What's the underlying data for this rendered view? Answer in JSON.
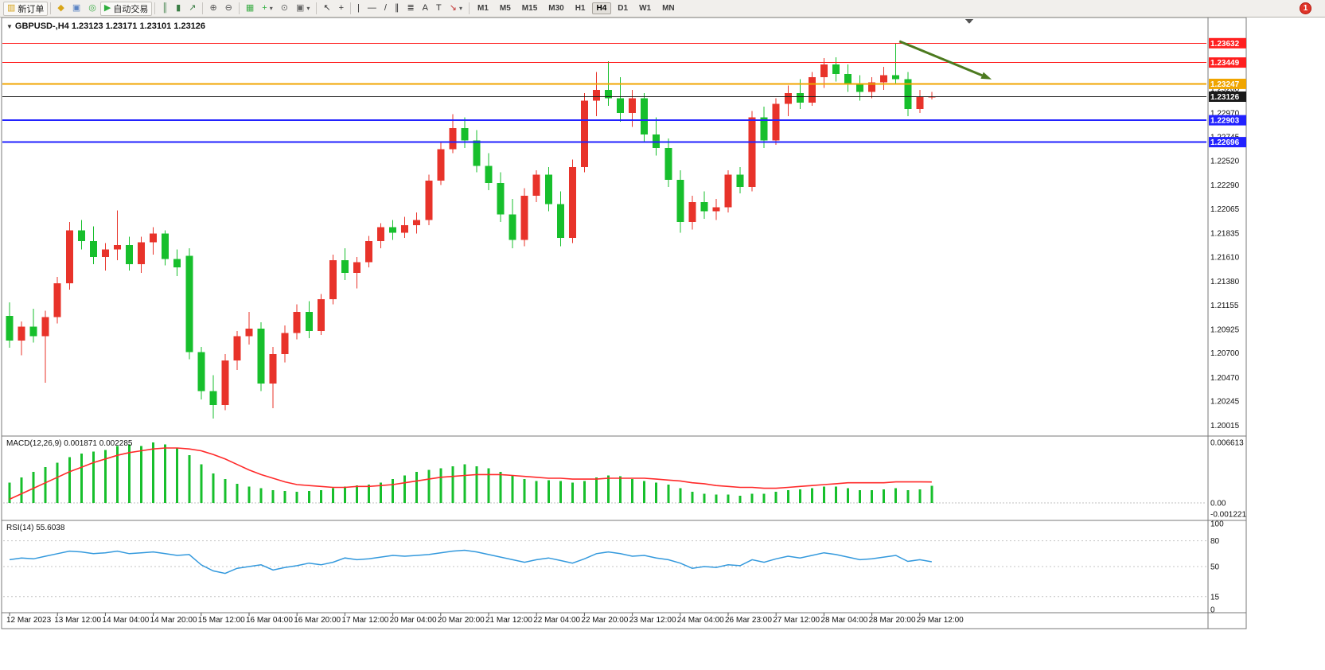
{
  "toolbar": {
    "buttons": [
      {
        "name": "new-order",
        "glyph": "▥",
        "color": "#d4a017",
        "label": "新订单"
      },
      {
        "sep": true
      },
      {
        "name": "market-watch",
        "glyph": "◆",
        "color": "#d8a518"
      },
      {
        "name": "data-window",
        "glyph": "▣",
        "color": "#5b84c4"
      },
      {
        "name": "navigator",
        "glyph": "◎",
        "color": "#3fae49"
      },
      {
        "name": "auto-trading",
        "glyph": "▶",
        "color": "#2fae3e",
        "label": "自动交易"
      },
      {
        "sep": true
      },
      {
        "name": "bar-chart",
        "glyph": "║",
        "color": "#3a7d44"
      },
      {
        "name": "candlestick-chart",
        "glyph": "▮",
        "color": "#3a7d44"
      },
      {
        "name": "line-chart",
        "glyph": "↗",
        "color": "#3a7d44"
      },
      {
        "sep": true
      },
      {
        "name": "zoom-in",
        "glyph": "⊕",
        "color": "#555555"
      },
      {
        "name": "zoom-out",
        "glyph": "⊖",
        "color": "#555555"
      },
      {
        "sep": true
      },
      {
        "name": "tile-windows",
        "glyph": "▦",
        "color": "#3fae49"
      },
      {
        "name": "new-chart",
        "glyph": "+",
        "color": "#2fae3e",
        "dropdown": true
      },
      {
        "name": "auto-scroll",
        "glyph": "⊙",
        "color": "#666666"
      },
      {
        "name": "chart-shift",
        "glyph": "▣",
        "color": "#666666",
        "dropdown": true
      },
      {
        "sep": true
      },
      {
        "name": "cursor",
        "glyph": "↖",
        "color": "#333333"
      },
      {
        "name": "crosshair",
        "glyph": "+",
        "color": "#333333"
      },
      {
        "sep": true
      },
      {
        "name": "vertical-line",
        "glyph": "|",
        "color": "#333333"
      },
      {
        "name": "horizontal-line",
        "glyph": "—",
        "color": "#333333"
      },
      {
        "name": "trendline",
        "glyph": "/",
        "color": "#333333"
      },
      {
        "name": "equidistant-channel",
        "glyph": "∥",
        "color": "#333333"
      },
      {
        "name": "fibonacci",
        "glyph": "≣",
        "color": "#333333"
      },
      {
        "name": "text",
        "glyph": "A",
        "color": "#333333"
      },
      {
        "name": "text-label",
        "glyph": "T",
        "color": "#333333"
      },
      {
        "name": "arrows-tool",
        "glyph": "↘",
        "color": "#c03030",
        "dropdown": true
      },
      {
        "sep": true
      }
    ],
    "timeframes": [
      {
        "label": "M1"
      },
      {
        "label": "M5"
      },
      {
        "label": "M15"
      },
      {
        "label": "M30"
      },
      {
        "label": "H1"
      },
      {
        "label": "H4",
        "active": true
      },
      {
        "label": "D1"
      },
      {
        "label": "W1"
      },
      {
        "label": "MN"
      }
    ],
    "notification_count": "1"
  },
  "icons": {
    "chart_dropdown": "▼"
  },
  "chart_data": [
    {
      "type": "candlestick",
      "symbol": "GBPUSD-",
      "timeframe": "H4",
      "title_line": "GBPUSD-,H4  1.23123 1.23171 1.23101 1.23126",
      "ohlc_display": {
        "open": 1.23123,
        "high": 1.23171,
        "low": 1.23101,
        "close": 1.23126
      },
      "up_color": "#e8332a",
      "down_color": "#17bf2c",
      "y_range": [
        1.1993,
        1.2379
      ],
      "y_axis_ticks": [
        "1.23200",
        "1.22970",
        "1.22745",
        "1.22520",
        "1.22290",
        "1.22065",
        "1.21835",
        "1.21610",
        "1.21380",
        "1.21155",
        "1.20925",
        "1.20700",
        "1.20470",
        "1.20245",
        "1.20015"
      ],
      "time_labels": [
        "12 Mar 2023",
        "13 Mar 12:00",
        "14 Mar 04:00",
        "14 Mar 20:00",
        "15 Mar 12:00",
        "16 Mar 04:00",
        "16 Mar 20:00",
        "17 Mar 12:00",
        "20 Mar 04:00",
        "20 Mar 20:00",
        "21 Mar 12:00",
        "22 Mar 04:00",
        "22 Mar 20:00",
        "23 Mar 12:00",
        "24 Mar 04:00",
        "26 Mar 23:00",
        "27 Mar 12:00",
        "28 Mar 04:00",
        "28 Mar 20:00",
        "29 Mar 12:00"
      ],
      "label_every_n_candles": 4,
      "candles": [
        [
          1.2105,
          1.2118,
          1.2075,
          1.2082
        ],
        [
          1.2082,
          1.21,
          1.2068,
          1.2095
        ],
        [
          1.2095,
          1.2112,
          1.208,
          1.2086
        ],
        [
          1.2086,
          1.211,
          1.2042,
          1.2104
        ],
        [
          1.2104,
          1.2142,
          1.2098,
          1.2136
        ],
        [
          1.2136,
          1.2194,
          1.213,
          1.2186
        ],
        [
          1.2186,
          1.2196,
          1.2168,
          1.2176
        ],
        [
          1.2176,
          1.219,
          1.2154,
          1.2161
        ],
        [
          1.2161,
          1.2174,
          1.2148,
          1.2168
        ],
        [
          1.2168,
          1.2205,
          1.2158,
          1.2172
        ],
        [
          1.2172,
          1.218,
          1.2148,
          1.2154
        ],
        [
          1.2154,
          1.218,
          1.2146,
          1.2175
        ],
        [
          1.2175,
          1.2189,
          1.2163,
          1.2183
        ],
        [
          1.2183,
          1.2186,
          1.2153,
          1.2159
        ],
        [
          1.2159,
          1.2168,
          1.2143,
          1.2151
        ],
        [
          1.2162,
          1.2169,
          1.2064,
          1.2071
        ],
        [
          1.2071,
          1.2076,
          1.2026,
          1.2034
        ],
        [
          1.2034,
          1.2049,
          1.2008,
          1.2021
        ],
        [
          1.2021,
          1.2069,
          1.2016,
          1.2063
        ],
        [
          1.2063,
          1.2091,
          1.2054,
          1.2086
        ],
        [
          1.2086,
          1.2109,
          1.2078,
          1.2093
        ],
        [
          1.2093,
          1.2099,
          1.2034,
          1.2041
        ],
        [
          1.2041,
          1.2076,
          1.2018,
          1.2069
        ],
        [
          1.2069,
          1.2096,
          1.2061,
          1.2089
        ],
        [
          1.2089,
          1.2116,
          1.2083,
          1.2109
        ],
        [
          1.2109,
          1.2119,
          1.2084,
          1.2091
        ],
        [
          1.2091,
          1.2126,
          1.2087,
          1.2121
        ],
        [
          1.2121,
          1.2163,
          1.2116,
          1.2158
        ],
        [
          1.2158,
          1.2169,
          1.2139,
          1.2146
        ],
        [
          1.2146,
          1.2161,
          1.2131,
          1.2156
        ],
        [
          1.2156,
          1.2181,
          1.2151,
          1.2176
        ],
        [
          1.2176,
          1.2193,
          1.2169,
          1.2189
        ],
        [
          1.2189,
          1.2196,
          1.2177,
          1.2184
        ],
        [
          1.2184,
          1.2199,
          1.2179,
          1.2191
        ],
        [
          1.2191,
          1.2203,
          1.2183,
          1.2196
        ],
        [
          1.2196,
          1.2239,
          1.2191,
          1.2233
        ],
        [
          1.2233,
          1.2269,
          1.2229,
          1.2263
        ],
        [
          1.2263,
          1.2296,
          1.2259,
          1.2283
        ],
        [
          1.2283,
          1.2293,
          1.2264,
          1.2271
        ],
        [
          1.2271,
          1.2281,
          1.2241,
          1.2247
        ],
        [
          1.2247,
          1.2259,
          1.2224,
          1.2231
        ],
        [
          1.2231,
          1.2241,
          1.2194,
          1.2201
        ],
        [
          1.2201,
          1.2216,
          1.2169,
          1.2177
        ],
        [
          1.2177,
          1.2226,
          1.2171,
          1.2219
        ],
        [
          1.2219,
          1.2243,
          1.2213,
          1.2239
        ],
        [
          1.2239,
          1.2246,
          1.2204,
          1.2211
        ],
        [
          1.2211,
          1.2223,
          1.2171,
          1.2179
        ],
        [
          1.2179,
          1.2253,
          1.2174,
          1.2246
        ],
        [
          1.2246,
          1.2316,
          1.2241,
          1.2309
        ],
        [
          1.2309,
          1.2336,
          1.2294,
          1.2319
        ],
        [
          1.2319,
          1.2346,
          1.2304,
          1.2311
        ],
        [
          1.2311,
          1.2331,
          1.2289,
          1.2297
        ],
        [
          1.2297,
          1.2319,
          1.2284,
          1.2311
        ],
        [
          1.2311,
          1.2316,
          1.2269,
          1.2277
        ],
        [
          1.2277,
          1.2293,
          1.2257,
          1.2264
        ],
        [
          1.2264,
          1.2273,
          1.2227,
          1.2234
        ],
        [
          1.2234,
          1.2243,
          1.2184,
          1.2194
        ],
        [
          1.2194,
          1.2219,
          1.2187,
          1.2213
        ],
        [
          1.2213,
          1.2223,
          1.2197,
          1.2204
        ],
        [
          1.2204,
          1.2216,
          1.2196,
          1.2208
        ],
        [
          1.2208,
          1.2243,
          1.2203,
          1.2239
        ],
        [
          1.2239,
          1.2246,
          1.2221,
          1.2227
        ],
        [
          1.2227,
          1.2299,
          1.2223,
          1.2293
        ],
        [
          1.2293,
          1.2303,
          1.2264,
          1.2271
        ],
        [
          1.2271,
          1.2311,
          1.2267,
          1.2306
        ],
        [
          1.2306,
          1.2323,
          1.2294,
          1.2316
        ],
        [
          1.2316,
          1.2329,
          1.2301,
          1.2307
        ],
        [
          1.2307,
          1.2336,
          1.2304,
          1.2331
        ],
        [
          1.2331,
          1.2349,
          1.2321,
          1.2343
        ],
        [
          1.2343,
          1.235,
          1.2327,
          1.2334
        ],
        [
          1.2334,
          1.2343,
          1.2317,
          1.2324
        ],
        [
          1.2324,
          1.2333,
          1.2309,
          1.2317
        ],
        [
          1.2317,
          1.2331,
          1.2311,
          1.2326
        ],
        [
          1.2326,
          1.2341,
          1.2319,
          1.2333
        ],
        [
          1.2333,
          1.2363,
          1.2324,
          1.2329
        ],
        [
          1.2329,
          1.2336,
          1.2294,
          1.2301
        ],
        [
          1.2301,
          1.2319,
          1.2297,
          1.2313
        ],
        [
          1.23123,
          1.23171,
          1.23101,
          1.23126
        ]
      ],
      "hlines": [
        {
          "price": 1.23632,
          "label": "1.23632",
          "color": "#ff1f1f",
          "width": 1
        },
        {
          "price": 1.23449,
          "label": "1.23449",
          "color": "#ff1f1f",
          "width": 1
        },
        {
          "price": 1.23247,
          "label": "1.23247",
          "color": "#f0a500",
          "width": 2
        },
        {
          "price": 1.23126,
          "label": "1.23126",
          "color": "#1a1a1a",
          "width": 1,
          "is_current_price": true
        },
        {
          "price": 1.22903,
          "label": "1.22903",
          "color": "#2222ff",
          "width": 2
        },
        {
          "price": 1.22696,
          "label": "1.22696",
          "color": "#2222ff",
          "width": 2
        }
      ],
      "arrow": {
        "from_index": 74.3,
        "from_price": 1.2365,
        "to_index": 82.0,
        "to_price": 1.2329,
        "color": "#4c7a1f"
      }
    },
    {
      "type": "bar",
      "name": "MACD",
      "label_line": "MACD(12,26,9) 0.001871 0.002285",
      "params": {
        "fast": 12,
        "slow": 26,
        "signal": 9
      },
      "macd_value": 0.001871,
      "signal_value": 0.002285,
      "hist_color": "#17bf2c",
      "signal_color": "#ff2a2a",
      "y_ticks": [
        "0.006613",
        "0.00",
        "-0.001221"
      ],
      "y_range": [
        -0.001221,
        0.006613
      ],
      "histogram": [
        0.0022,
        0.0028,
        0.0034,
        0.0039,
        0.0044,
        0.005,
        0.0054,
        0.0056,
        0.0058,
        0.0062,
        0.0064,
        0.0062,
        0.0066,
        0.0064,
        0.006,
        0.0052,
        0.0042,
        0.0032,
        0.0026,
        0.0021,
        0.0018,
        0.0016,
        0.0014,
        0.0013,
        0.0012,
        0.0013,
        0.0014,
        0.0016,
        0.0018,
        0.0019,
        0.002,
        0.0022,
        0.0026,
        0.003,
        0.0034,
        0.0036,
        0.0038,
        0.004,
        0.0042,
        0.004,
        0.0038,
        0.0034,
        0.003,
        0.0026,
        0.0024,
        0.0025,
        0.0024,
        0.0022,
        0.0024,
        0.0028,
        0.003,
        0.0029,
        0.0026,
        0.0024,
        0.0022,
        0.002,
        0.0016,
        0.0012,
        0.001,
        0.0009,
        0.0009,
        0.0008,
        0.001,
        0.001,
        0.0012,
        0.0014,
        0.0015,
        0.0016,
        0.0018,
        0.0018,
        0.0016,
        0.0014,
        0.0014,
        0.0015,
        0.0016,
        0.0014,
        0.0015,
        0.001871
      ],
      "signal": [
        0.0004,
        0.001,
        0.0016,
        0.0022,
        0.0028,
        0.0034,
        0.0039,
        0.0044,
        0.0048,
        0.0052,
        0.0055,
        0.0057,
        0.0059,
        0.006,
        0.006,
        0.0059,
        0.0057,
        0.0053,
        0.0048,
        0.0042,
        0.0036,
        0.0031,
        0.0027,
        0.0023,
        0.002,
        0.0019,
        0.0018,
        0.0017,
        0.0017,
        0.0018,
        0.0018,
        0.0019,
        0.002,
        0.0022,
        0.0024,
        0.0026,
        0.0028,
        0.0029,
        0.003,
        0.0031,
        0.0031,
        0.0031,
        0.003,
        0.0029,
        0.0028,
        0.0027,
        0.0027,
        0.0026,
        0.0026,
        0.0026,
        0.0027,
        0.0027,
        0.0027,
        0.0027,
        0.0026,
        0.0025,
        0.0024,
        0.0022,
        0.0021,
        0.0019,
        0.0018,
        0.0017,
        0.0017,
        0.0016,
        0.0016,
        0.0017,
        0.0018,
        0.0019,
        0.002,
        0.0021,
        0.0022,
        0.0022,
        0.0022,
        0.0022,
        0.0023,
        0.0023,
        0.0023,
        0.002285
      ]
    },
    {
      "type": "line",
      "name": "RSI",
      "label_line": "RSI(14) 55.6038",
      "period": 14,
      "value": 55.6038,
      "line_color": "#3399dd",
      "levels": [
        80,
        50,
        15
      ],
      "y_ticks": [
        "100",
        "80",
        "50",
        "15",
        "0"
      ],
      "y_range": [
        0,
        100
      ],
      "values": [
        58,
        60,
        59,
        62,
        65,
        68,
        67,
        65,
        66,
        68,
        65,
        66,
        67,
        65,
        63,
        64,
        52,
        45,
        42,
        48,
        50,
        52,
        46,
        49,
        51,
        54,
        52,
        55,
        60,
        58,
        59,
        61,
        63,
        62,
        63,
        64,
        66,
        68,
        69,
        67,
        64,
        61,
        58,
        55,
        58,
        60,
        57,
        54,
        59,
        65,
        67,
        65,
        62,
        63,
        60,
        58,
        54,
        48,
        50,
        49,
        52,
        51,
        58,
        55,
        59,
        62,
        60,
        63,
        66,
        64,
        61,
        58,
        59,
        61,
        63,
        56,
        58,
        55.6
      ]
    }
  ]
}
